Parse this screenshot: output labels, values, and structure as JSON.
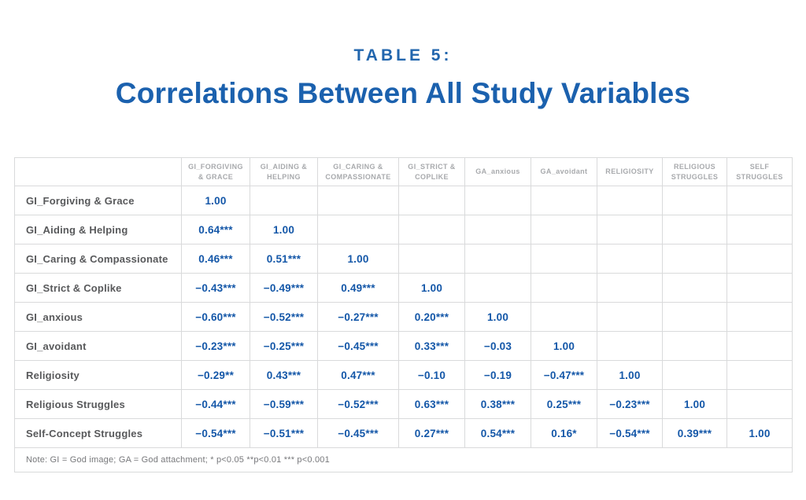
{
  "page": {
    "kicker": "TABLE 5:",
    "title": "Correlations Between All Study Variables"
  },
  "colors": {
    "title_blue": "#1b61ae",
    "value_blue": "#1457a8",
    "row_label_gray": "#58595b",
    "column_header_gray": "#a8aaad",
    "note_gray": "#77787b",
    "border_gray": "#d9dadb"
  },
  "chart_data": {
    "type": "table",
    "title": "TABLE 5: Correlations Between All Study Variables",
    "columns": [
      "GI_FORGIVING & GRACE",
      "GI_AIDING & HELPING",
      "GI_CARING & COMPASSIONATE",
      "GI_STRICT & COPLIKE",
      "GA_anxious",
      "GA_avoidant",
      "RELIGIOSITY",
      "RELIGIOUS STRUGGLES",
      "SELF STRUGGLES"
    ],
    "rows": [
      {
        "label": "GI_Forgiving & Grace",
        "values": [
          "1.00",
          "",
          "",
          "",
          "",
          "",
          "",
          "",
          ""
        ]
      },
      {
        "label": "GI_Aiding & Helping",
        "values": [
          "0.64***",
          "1.00",
          "",
          "",
          "",
          "",
          "",
          "",
          ""
        ]
      },
      {
        "label": "GI_Caring & Compassionate",
        "values": [
          "0.46***",
          "0.51***",
          "1.00",
          "",
          "",
          "",
          "",
          "",
          ""
        ]
      },
      {
        "label": "GI_Strict & Coplike",
        "values": [
          "−0.43***",
          "−0.49***",
          "0.49***",
          "1.00",
          "",
          "",
          "",
          "",
          ""
        ]
      },
      {
        "label": "GI_anxious",
        "values": [
          "−0.60***",
          "−0.52***",
          "−0.27***",
          "0.20***",
          "1.00",
          "",
          "",
          "",
          ""
        ]
      },
      {
        "label": "GI_avoidant",
        "values": [
          "−0.23***",
          "−0.25***",
          "−0.45***",
          "0.33***",
          "−0.03",
          "1.00",
          "",
          "",
          ""
        ]
      },
      {
        "label": "Religiosity",
        "values": [
          "−0.29**",
          "0.43***",
          "0.47***",
          "−0.10",
          "−0.19",
          "−0.47***",
          "1.00",
          "",
          ""
        ]
      },
      {
        "label": "Religious Struggles",
        "values": [
          "−0.44***",
          "−0.59***",
          "−0.52***",
          "0.63***",
          "0.38***",
          "0.25***",
          "−0.23***",
          "1.00",
          ""
        ]
      },
      {
        "label": "Self-Concept Struggles",
        "values": [
          "−0.54***",
          "−0.51***",
          "−0.45***",
          "0.27***",
          "0.54***",
          "0.16*",
          "−0.54***",
          "0.39***",
          "1.00"
        ]
      }
    ],
    "note": "Note: GI = God image; GA = God attachment; * p<0.05 **p<0.01 *** p<0.001"
  }
}
